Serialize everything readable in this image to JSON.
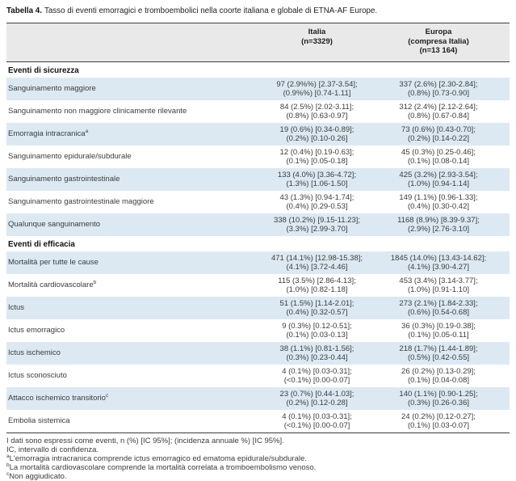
{
  "colors": {
    "row_alt": "#dce9f2",
    "header_bg": "#e9e9e9",
    "border": "#3d3d3d",
    "text": "#3c3c3c",
    "heading": "#111111"
  },
  "title": {
    "label": "Tabella 4.",
    "text": "Tasso di eventi emorragici e tromboembolici nella coorte italiana e globale di ETNA-AF Europe."
  },
  "header": {
    "italia": [
      "Italia",
      "(n=3329)"
    ],
    "europa": [
      "Europa",
      "(compresa Italia)",
      "(n=13 164)"
    ]
  },
  "rows": [
    {
      "type": "section",
      "label": "Eventi di sicurezza"
    },
    {
      "type": "data",
      "label": "Sanguinamento maggiore",
      "sup": "",
      "it1": "97 (2.9%%) [2.37-3.54];",
      "it2": "(0.9%%) [0.74-1.11]",
      "eu1": "337 (2.6%) [2.30-2.84];",
      "eu2": "(0.8%) [0.73-0.90]"
    },
    {
      "type": "data",
      "label": "Sanguinamento non maggiore clinicamente rilevante",
      "sup": "",
      "it1": "84 (2.5%) [2.02-3.11];",
      "it2": "(0.8%) [0.63-0.97]",
      "eu1": "312 (2.4%) [2.12-2.64];",
      "eu2": "(0.8%) [0.67-0.84]"
    },
    {
      "type": "data",
      "label": "Emorragia intracranica",
      "sup": "a",
      "it1": "19 (0.6%) [0.34-0.89];",
      "it2": "(0.2%) [0.10-0.26]",
      "eu1": "73 (0.6%) [0.43-0.70];",
      "eu2": "(0.2%) [0.14-0.22]"
    },
    {
      "type": "data",
      "label": "Sanguinamento epidurale/subdurale",
      "sup": "",
      "it1": "12 (0.4%) [0.19-0.63];",
      "it2": "(0.1%) [0.05-0.18]",
      "eu1": "45 (0.3%) [0.25-0.46];",
      "eu2": "(0.1%) [0.08-0.14]"
    },
    {
      "type": "data",
      "label": "Sanguinamento gastrointestinale",
      "sup": "",
      "it1": "133 (4.0%) [3.36-4.72];",
      "it2": "(1.3%) [1.06-1.50]",
      "eu1": "425 (3.2%) [2.93-3.54];",
      "eu2": "(1.0%) [0.94-1.14]"
    },
    {
      "type": "data",
      "label": "Sanguinamento gastrointestinale maggiore",
      "sup": "",
      "it1": "43 (1.3%) [0.94-1.74];",
      "it2": "(0.4%) [0.29-0.53]",
      "eu1": "149 (1.1%) [0.96-1.33];",
      "eu2": "(0.4%) [0.30-0.42]"
    },
    {
      "type": "data",
      "label": "Qualunque sanguinamento",
      "sup": "",
      "it1": "338 (10.2%) [9.15-11.23];",
      "it2": "(3.3%) [2.99-3.70]",
      "eu1": "1168 (8.9%) [8.39-9.37];",
      "eu2": "(2.9%) [2.76-3.10]"
    },
    {
      "type": "section",
      "label": "Eventi di efficacia"
    },
    {
      "type": "data",
      "label": "Mortalità per tutte le cause",
      "sup": "",
      "it1": "471 (14.1%) [12.98-15.38];",
      "it2": "(4.1%) [3.72-4.46]",
      "eu1": "1845 (14.0%) [13.43-14.62];",
      "eu2": "(4.1%) [3.90-4.27]"
    },
    {
      "type": "data",
      "label": "Mortalità cardiovascolare",
      "sup": "b",
      "it1": "115 (3.5%) [2.86-4.13];",
      "it2": "(1.0%) [0.82-1.18]",
      "eu1": "453 (3.4%) [3.14-3.77];",
      "eu2": "(1.0%) [0.91-1.10]"
    },
    {
      "type": "data",
      "label": "Ictus",
      "sup": "",
      "it1": "51 (1.5%) [1.14-2.01];",
      "it2": "(0.4%) [0.32-0.57]",
      "eu1": "273 (2.1%) [1.84-2.33];",
      "eu2": "(0.6%) [0.54-0.68]"
    },
    {
      "type": "data",
      "label": "Ictus emorragico",
      "sup": "",
      "it1": "9 (0.3%) [0.12-0.51];",
      "it2": "(0.1%) [0.03-0.13]",
      "eu1": "36 (0.3%) [0.19-0.38];",
      "eu2": "(0.1%) [0.05-0.11]"
    },
    {
      "type": "data",
      "label": "Ictus ischemico",
      "sup": "",
      "it1": "38 (1.1%) [0.81-1.56];",
      "it2": "(0.3%) [0.23-0.44]",
      "eu1": "218 (1.7%) [1.44-1.89];",
      "eu2": "(0.5%) [0.42-0.55]"
    },
    {
      "type": "data",
      "label": "Ictus sconosciuto",
      "sup": "",
      "it1": "4 (0.1%) [0.03-0.31];",
      "it2": "(<0.1%) [0.00-0.07]",
      "eu1": "26 (0.2%) [0.13-0.29];",
      "eu2": "(0.1%) [0.04-0.08]"
    },
    {
      "type": "data",
      "label": "Attacco ischemico transitorio",
      "sup": "c",
      "it1": "23 (0.7%) [0.44-1.03];",
      "it2": "(0.2%) [0.12-0.28]",
      "eu1": "140 (1.1%) [0.90-1.25];",
      "eu2": "(0.3%) [0.26-0.36]"
    },
    {
      "type": "data",
      "label": "Embolia sistemica",
      "sup": "",
      "it1": "4 (0.1%) [0.03-0.31];",
      "it2": "(<0.1%) [0.00-0.07]",
      "eu1": "24 (0.2%) [0.12-0.27];",
      "eu2": "(0.1%) [0.03-0.07]"
    }
  ],
  "footnotes": [
    {
      "sup": "",
      "text": "I dati sono espressi come eventi, n (%) [IC 95%]; (incidenza annuale %) [IC 95%]."
    },
    {
      "sup": "",
      "text": "IC, intervallo di confidenza."
    },
    {
      "sup": "a",
      "text": "L'emorragia intracranica comprende ictus emorragico ed ematoma epidurale/subdurale."
    },
    {
      "sup": "b",
      "text": "La mortalità cardiovascolare comprende la mortalità correlata a tromboembolismo venoso."
    },
    {
      "sup": "c",
      "text": "Non aggiudicato."
    }
  ]
}
